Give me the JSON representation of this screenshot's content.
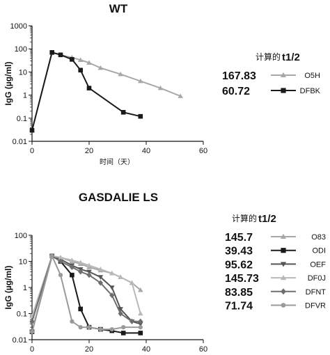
{
  "chart_data": [
    {
      "type": "line",
      "title": "WT",
      "ylabel": "IgG (µg/ml)",
      "xlabel": "时间（天）",
      "xlim": [
        0,
        60
      ],
      "ylim": [
        0.01,
        1000
      ],
      "yscale": "log",
      "xticks": [
        "0",
        "20",
        "40",
        "60"
      ],
      "yticks": [
        "0.01",
        "0.1",
        "1",
        "10",
        "100",
        "1000"
      ],
      "legend": {
        "placement": "right",
        "header_prefix": "计算的",
        "header_bold": "t1/2"
      },
      "series": [
        {
          "name": "O5H",
          "half_life": "167.83",
          "color": "#a8a8a8",
          "marker": "triangle",
          "x": [
            0,
            7,
            10,
            14,
            17,
            20,
            24,
            31,
            38,
            45,
            52
          ],
          "y": [
            0.03,
            70,
            55,
            42,
            33,
            25,
            15,
            8,
            4,
            2,
            0.9
          ]
        },
        {
          "name": "DFBK",
          "half_life": "60.72",
          "color": "#1a1a1a",
          "marker": "square",
          "x": [
            0,
            7,
            10,
            14,
            17,
            20,
            32,
            38
          ],
          "y": [
            0.03,
            70,
            55,
            35,
            12,
            2,
            0.18,
            0.12
          ]
        }
      ]
    },
    {
      "type": "line",
      "title": "GASDALIE LS",
      "ylabel": "IgG (µg/ml)",
      "xlabel": "时间（天）",
      "xlim": [
        0,
        60
      ],
      "ylim": [
        0.01,
        100
      ],
      "yscale": "log",
      "xticks": [
        "0",
        "20",
        "40",
        "60"
      ],
      "yticks": [
        "0.01",
        "0.1",
        "1",
        "10",
        "100"
      ],
      "legend": {
        "placement": "right",
        "header_prefix": "计算的",
        "header_bold": "t1/2"
      },
      "series": [
        {
          "name": "O83",
          "half_life": "145.7",
          "color": "#a8a8a8",
          "marker": "triangle",
          "x": [
            0,
            7,
            10,
            14,
            17,
            20,
            24,
            28,
            31,
            35,
            38
          ],
          "y": [
            0.05,
            16,
            14,
            10,
            8,
            6,
            4.5,
            3.5,
            2.5,
            1.5,
            0.8
          ]
        },
        {
          "name": "ODI",
          "half_life": "39.43",
          "color": "#1a1a1a",
          "marker": "square",
          "x": [
            0,
            7,
            10,
            14,
            17,
            20,
            24,
            28,
            32,
            38
          ],
          "y": [
            0.02,
            16,
            10,
            3,
            0.15,
            0.03,
            0.025,
            0.022,
            0.018,
            0.018
          ]
        },
        {
          "name": "OEF",
          "half_life": "95.62",
          "color": "#555555",
          "marker": "triangle-down",
          "x": [
            0,
            7,
            10,
            14,
            17,
            20,
            24,
            28,
            31,
            35,
            38
          ],
          "y": [
            0.02,
            16,
            12,
            7,
            5,
            4,
            2.5,
            1,
            0.15,
            0.05,
            0.04
          ]
        },
        {
          "name": "DF0J",
          "half_life": "145.73",
          "color": "#b8b8b8",
          "marker": "triangle",
          "x": [
            0,
            7,
            10,
            14,
            17,
            20,
            24,
            28,
            31,
            35,
            38
          ],
          "y": [
            0.08,
            16,
            14,
            11,
            9,
            7,
            5,
            3.5,
            2.5,
            1.5,
            0.1
          ]
        },
        {
          "name": "DFNT",
          "half_life": "83.85",
          "color": "#6e6e6e",
          "marker": "diamond",
          "x": [
            0,
            7,
            10,
            14,
            17,
            20,
            24,
            28,
            31,
            35,
            38
          ],
          "y": [
            0.05,
            16,
            10,
            6,
            4,
            3,
            1.5,
            0.5,
            0.1,
            0.05,
            0.05
          ]
        },
        {
          "name": "DFVR",
          "half_life": "71.74",
          "color": "#9a9a9a",
          "marker": "circle",
          "x": [
            0,
            7,
            10,
            14,
            17,
            20,
            24,
            28,
            32,
            38
          ],
          "y": [
            0.02,
            16,
            3,
            0.05,
            0.03,
            0.03,
            0.025,
            0.025,
            0.03,
            0.03
          ]
        }
      ]
    }
  ]
}
